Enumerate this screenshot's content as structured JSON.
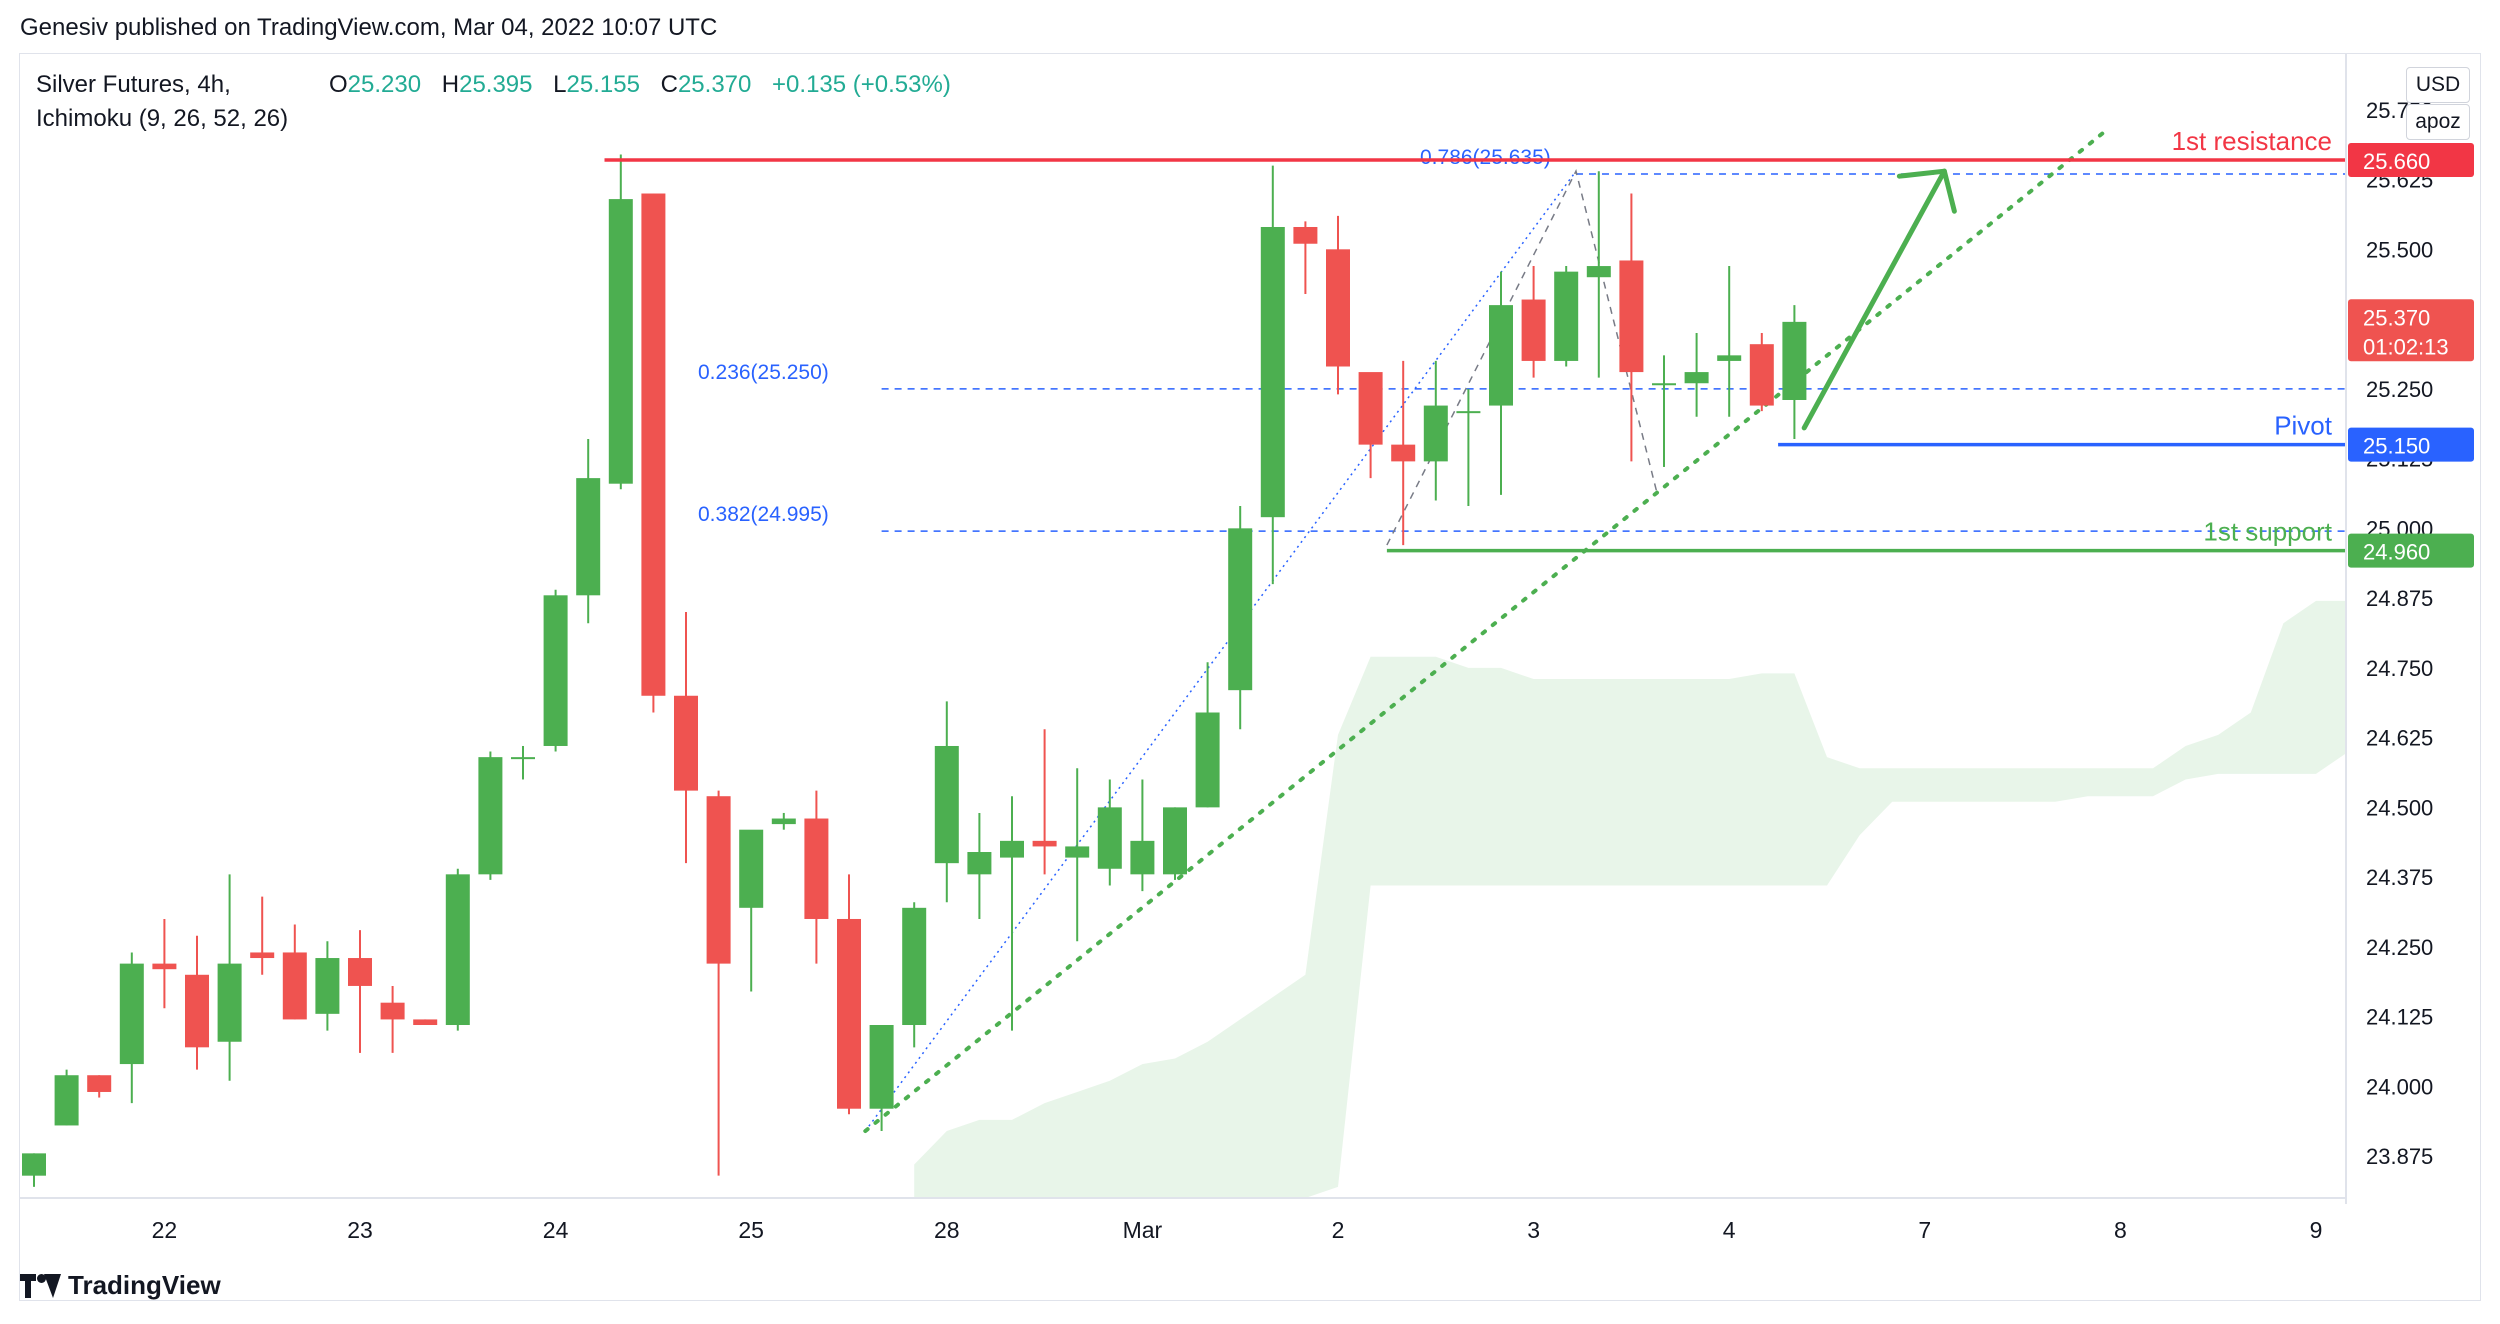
{
  "header": {
    "published": "Genesiv published on TradingView.com, Mar 04, 2022 10:07 UTC"
  },
  "legend": {
    "line1": "Silver Futures, 4h,",
    "line2": "Ichimoku (9, 26, 52, 26)",
    "o_key": "O",
    "o_val": "25.230",
    "h_key": "H",
    "h_val": "25.395",
    "l_key": "L",
    "l_val": "25.155",
    "c_key": "C",
    "c_val": "25.370",
    "change": "+0.135 (+0.53%)"
  },
  "chips": {
    "currency": "USD",
    "mode": "apoz"
  },
  "footer": {
    "brand": "TradingView"
  },
  "colors": {
    "up": "#4caf50",
    "down": "#ef5350",
    "resistance": "#f23645",
    "pivot": "#2962ff",
    "support": "#4caf50",
    "cloud": "#e8f5e9",
    "fib": "#2962ff"
  },
  "chart_data": {
    "type": "candlestick",
    "title": "Silver Futures, 4h,",
    "ylim": [
      23.8,
      25.85
    ],
    "y_ticks": [
      "23.875",
      "24.000",
      "24.125",
      "24.250",
      "24.375",
      "24.500",
      "24.625",
      "24.750",
      "24.875",
      "25.000",
      "25.125",
      "25.250",
      "25.375",
      "25.500",
      "25.625",
      "25.750"
    ],
    "x_ticks": [
      {
        "label": "22",
        "i": 4
      },
      {
        "label": "23",
        "i": 10
      },
      {
        "label": "24",
        "i": 16
      },
      {
        "label": "25",
        "i": 22
      },
      {
        "label": "28",
        "i": 28
      },
      {
        "label": "Mar",
        "i": 34
      },
      {
        "label": "2",
        "i": 40
      },
      {
        "label": "3",
        "i": 46
      },
      {
        "label": "4",
        "i": 52
      },
      {
        "label": "7",
        "i": 58
      },
      {
        "label": "8",
        "i": 64
      },
      {
        "label": "9",
        "i": 70
      }
    ],
    "candles": [
      {
        "o": 23.84,
        "h": 23.88,
        "l": 23.82,
        "c": 23.88
      },
      {
        "o": 23.93,
        "h": 24.03,
        "l": 23.93,
        "c": 24.02
      },
      {
        "o": 24.02,
        "h": 24.02,
        "l": 23.98,
        "c": 23.99
      },
      {
        "o": 24.04,
        "h": 24.24,
        "l": 23.97,
        "c": 24.22
      },
      {
        "o": 24.22,
        "h": 24.3,
        "l": 24.14,
        "c": 24.21
      },
      {
        "o": 24.2,
        "h": 24.27,
        "l": 24.03,
        "c": 24.07
      },
      {
        "o": 24.08,
        "h": 24.38,
        "l": 24.01,
        "c": 24.22
      },
      {
        "o": 24.24,
        "h": 24.34,
        "l": 24.2,
        "c": 24.23
      },
      {
        "o": 24.24,
        "h": 24.29,
        "l": 24.12,
        "c": 24.12
      },
      {
        "o": 24.13,
        "h": 24.26,
        "l": 24.1,
        "c": 24.23
      },
      {
        "o": 24.23,
        "h": 24.28,
        "l": 24.06,
        "c": 24.18
      },
      {
        "o": 24.15,
        "h": 24.18,
        "l": 24.06,
        "c": 24.12
      },
      {
        "o": 24.12,
        "h": 24.12,
        "l": 24.11,
        "c": 24.11
      },
      {
        "o": 24.11,
        "h": 24.39,
        "l": 24.1,
        "c": 24.38
      },
      {
        "o": 24.38,
        "h": 24.6,
        "l": 24.37,
        "c": 24.59
      },
      {
        "o": 24.59,
        "h": 24.61,
        "l": 24.55,
        "c": 24.59
      },
      {
        "o": 24.61,
        "h": 24.89,
        "l": 24.6,
        "c": 24.88
      },
      {
        "o": 24.88,
        "h": 25.16,
        "l": 24.83,
        "c": 25.09
      },
      {
        "o": 25.08,
        "h": 25.67,
        "l": 25.07,
        "c": 25.59
      },
      {
        "o": 25.6,
        "h": 25.6,
        "l": 24.67,
        "c": 24.7
      },
      {
        "o": 24.7,
        "h": 24.85,
        "l": 24.4,
        "c": 24.53
      },
      {
        "o": 24.52,
        "h": 24.53,
        "l": 23.84,
        "c": 24.22
      },
      {
        "o": 24.32,
        "h": 24.45,
        "l": 24.17,
        "c": 24.46
      },
      {
        "o": 24.47,
        "h": 24.49,
        "l": 24.46,
        "c": 24.48
      },
      {
        "o": 24.48,
        "h": 24.53,
        "l": 24.22,
        "c": 24.3
      },
      {
        "o": 24.3,
        "h": 24.38,
        "l": 23.95,
        "c": 23.96
      },
      {
        "o": 23.96,
        "h": 24.11,
        "l": 23.92,
        "c": 24.11
      },
      {
        "o": 24.11,
        "h": 24.33,
        "l": 24.07,
        "c": 24.32
      },
      {
        "o": 24.4,
        "h": 24.69,
        "l": 24.33,
        "c": 24.61
      },
      {
        "o": 24.38,
        "h": 24.49,
        "l": 24.3,
        "c": 24.42
      },
      {
        "o": 24.41,
        "h": 24.52,
        "l": 24.1,
        "c": 24.44
      },
      {
        "o": 24.44,
        "h": 24.64,
        "l": 24.38,
        "c": 24.43
      },
      {
        "o": 24.41,
        "h": 24.57,
        "l": 24.26,
        "c": 24.43
      },
      {
        "o": 24.39,
        "h": 24.55,
        "l": 24.36,
        "c": 24.5
      },
      {
        "o": 24.38,
        "h": 24.55,
        "l": 24.35,
        "c": 24.44
      },
      {
        "o": 24.38,
        "h": 24.5,
        "l": 24.37,
        "c": 24.5
      },
      {
        "o": 24.5,
        "h": 24.76,
        "l": 24.5,
        "c": 24.67
      },
      {
        "o": 24.71,
        "h": 25.04,
        "l": 24.64,
        "c": 25.0
      },
      {
        "o": 25.02,
        "h": 25.65,
        "l": 24.9,
        "c": 25.54
      },
      {
        "o": 25.54,
        "h": 25.55,
        "l": 25.42,
        "c": 25.51
      },
      {
        "o": 25.5,
        "h": 25.56,
        "l": 25.24,
        "c": 25.29
      },
      {
        "o": 25.28,
        "h": 25.27,
        "l": 25.09,
        "c": 25.15
      },
      {
        "o": 25.15,
        "h": 25.3,
        "l": 24.97,
        "c": 25.12
      },
      {
        "o": 25.12,
        "h": 25.3,
        "l": 25.05,
        "c": 25.22
      },
      {
        "o": 25.21,
        "h": 25.25,
        "l": 25.04,
        "c": 25.21
      },
      {
        "o": 25.22,
        "h": 25.46,
        "l": 25.06,
        "c": 25.4
      },
      {
        "o": 25.41,
        "h": 25.47,
        "l": 25.27,
        "c": 25.3
      },
      {
        "o": 25.3,
        "h": 25.47,
        "l": 25.29,
        "c": 25.46
      },
      {
        "o": 25.45,
        "h": 25.64,
        "l": 25.27,
        "c": 25.47
      },
      {
        "o": 25.48,
        "h": 25.6,
        "l": 25.12,
        "c": 25.28
      },
      {
        "o": 25.26,
        "h": 25.31,
        "l": 25.11,
        "c": 25.26
      },
      {
        "o": 25.26,
        "h": 25.35,
        "l": 25.2,
        "c": 25.28
      },
      {
        "o": 25.3,
        "h": 25.47,
        "l": 25.2,
        "c": 25.31
      },
      {
        "o": 25.33,
        "h": 25.35,
        "l": 25.21,
        "c": 25.22
      },
      {
        "o": 25.23,
        "h": 25.4,
        "l": 25.16,
        "c": 25.37
      }
    ],
    "cloud": {
      "start_i": 27,
      "upper": [
        23.86,
        23.92,
        23.94,
        23.94,
        23.97,
        23.99,
        24.01,
        24.04,
        24.05,
        24.08,
        24.12,
        24.16,
        24.2,
        24.63,
        24.77,
        24.77,
        24.77,
        24.75,
        24.75,
        24.73,
        24.73,
        24.73,
        24.73,
        24.73,
        24.73,
        24.73,
        24.74,
        24.74,
        24.59,
        24.57,
        24.57,
        24.57,
        24.57,
        24.57,
        24.57,
        24.57,
        24.57,
        24.57,
        24.57,
        24.61,
        24.63,
        24.67,
        24.83,
        24.87,
        24.87,
        24.87,
        24.87,
        24.88,
        24.9,
        24.92,
        24.94,
        24.96,
        24.96
      ],
      "lower": [
        23.8,
        23.8,
        23.8,
        23.8,
        23.8,
        23.8,
        23.8,
        23.8,
        23.8,
        23.8,
        23.8,
        23.8,
        23.8,
        23.82,
        24.36,
        24.36,
        24.36,
        24.36,
        24.36,
        24.36,
        24.36,
        24.36,
        24.36,
        24.36,
        24.36,
        24.36,
        24.36,
        24.36,
        24.36,
        24.45,
        24.51,
        24.51,
        24.51,
        24.51,
        24.51,
        24.51,
        24.52,
        24.52,
        24.52,
        24.55,
        24.56,
        24.56,
        24.56,
        24.56,
        24.6,
        24.64,
        24.68,
        24.69,
        24.69,
        24.69,
        24.69,
        24.69,
        24.69
      ]
    },
    "levels": [
      {
        "name": "1st resistance",
        "label": "1st resistance",
        "value": 25.66,
        "value_label": "25.660",
        "from_i": 17.5
      },
      {
        "name": "Pivot",
        "label": "Pivot",
        "value": 25.15,
        "value_label": "25.150",
        "from_i": 53.5
      },
      {
        "name": "1st support",
        "label": "1st support",
        "value": 24.96,
        "value_label": "24.960",
        "from_i": 41.5
      }
    ],
    "fib_lines": [
      {
        "label": "0.786(25.635)",
        "value": 25.635,
        "from_i": 47.3
      },
      {
        "label": "0.236(25.250)",
        "value": 25.25,
        "from_i": 26
      },
      {
        "label": "0.382(24.995)",
        "value": 24.995,
        "from_i": 26
      }
    ],
    "last_price": {
      "value": 25.37,
      "label": "25.370",
      "countdown": "01:02:13"
    }
  }
}
